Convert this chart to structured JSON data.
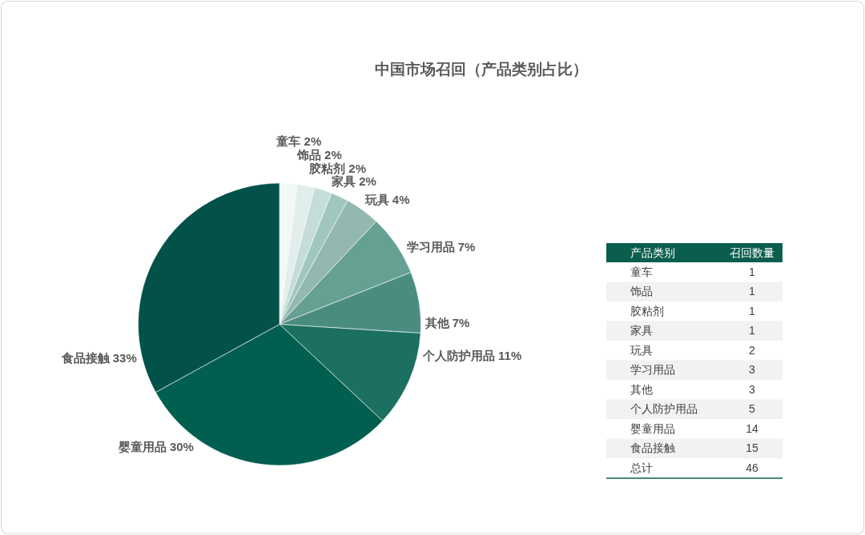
{
  "chart_data": [
    {
      "type": "pie",
      "title": "中国市场召回（产品类别占比）",
      "categories": [
        "童车",
        "饰品",
        "胶粘剂",
        "家具",
        "玩具",
        "学习用品",
        "其他",
        "个人防护用品",
        "婴童用品",
        "食品接触"
      ],
      "values": [
        2,
        2,
        2,
        2,
        4,
        7,
        7,
        11,
        30,
        33
      ],
      "value_labels": [
        "2%",
        "2%",
        "2%",
        "2%",
        "4%",
        "7%",
        "7%",
        "11%",
        "30%",
        "33%"
      ],
      "colors": [
        "#f2f7f7",
        "#e2eeec",
        "#c5ddd9",
        "#9fc7bf",
        "#93b8b0",
        "#65a093",
        "#4b8c80",
        "#1b7062",
        "#005f4f",
        "#02524a"
      ]
    },
    {
      "type": "other",
      "annotations": [
        "产品类别",
        "召回数量",
        "总计"
      ],
      "categories": [
        "童车",
        "饰品",
        "胶粘剂",
        "家具",
        "玩具",
        "学习用品",
        "其他",
        "个人防护用品",
        "婴童用品",
        "食品接触"
      ],
      "values": [
        1,
        1,
        1,
        1,
        2,
        3,
        3,
        5,
        14,
        15
      ],
      "data_labels": true,
      "totals": [
        "46"
      ]
    }
  ]
}
